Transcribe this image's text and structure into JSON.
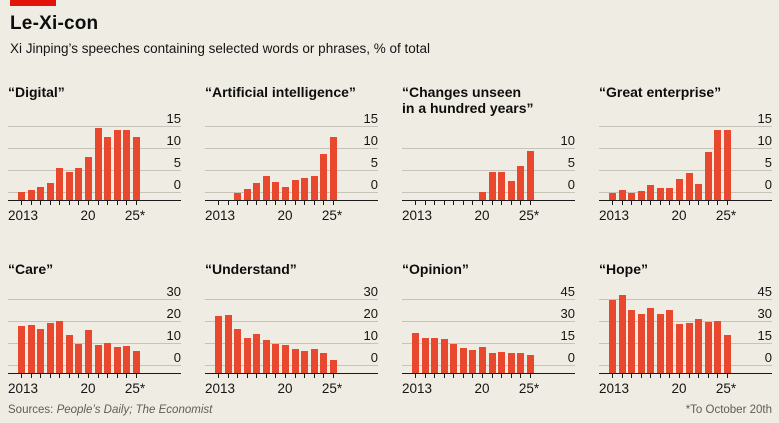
{
  "header": {
    "title": "Le-Xi-con",
    "subtitle": "Xi Jinping’s speeches containing selected words or phrases, % of total"
  },
  "footer": {
    "sources_prefix": "Sources: ",
    "sources": "People’s Daily; The Economist",
    "note": "*To October 20th"
  },
  "colors": {
    "background": "#EFEDE3",
    "bar": "#E8492E",
    "brand_red": "#E3120B",
    "gridline": "#C6C4BA",
    "axis": "#1A1A1A",
    "text": "#141414",
    "muted": "#5E5D57"
  },
  "x_axis": {
    "tick_labels": [
      "2013",
      "20",
      "25*"
    ]
  },
  "chart_data": [
    {
      "type": "bar",
      "title_lines": [
        "“Digital”"
      ],
      "categories": [
        "2013",
        "2014",
        "2015",
        "2016",
        "2017",
        "2018",
        "2019",
        "2020",
        "2021",
        "2022",
        "2023",
        "2024",
        "2025"
      ],
      "values": [
        0.5,
        1,
        1.7,
        2.4,
        6,
        5,
        6,
        8.5,
        15,
        13,
        14.5,
        14.5,
        13
      ],
      "yticks": [
        0,
        5,
        10,
        15
      ],
      "ylim": [
        0,
        15
      ]
    },
    {
      "type": "bar",
      "title_lines": [
        "“Artificial intelligence”"
      ],
      "categories": [
        "2013",
        "2014",
        "2015",
        "2016",
        "2017",
        "2018",
        "2019",
        "2020",
        "2021",
        "2022",
        "2023",
        "2024",
        "2025"
      ],
      "values": [
        0,
        0,
        0.2,
        1.2,
        2.5,
        4.2,
        2.7,
        1.7,
        3.2,
        3.6,
        4.2,
        9.2,
        13
      ],
      "yticks": [
        0,
        5,
        10,
        15
      ],
      "ylim": [
        0,
        15
      ]
    },
    {
      "type": "bar",
      "title_lines": [
        "“Changes unseen",
        "in a hundred years”"
      ],
      "categories": [
        "2013",
        "2014",
        "2015",
        "2016",
        "2017",
        "2018",
        "2019",
        "2020",
        "2021",
        "2022",
        "2023",
        "2024",
        "2025"
      ],
      "values": [
        0,
        0,
        0,
        0,
        0,
        0,
        0,
        0.5,
        5,
        5,
        3,
        6.3,
        9.7
      ],
      "yticks": [
        0,
        5,
        10
      ],
      "ylim": [
        0,
        10
      ]
    },
    {
      "type": "bar",
      "title_lines": [
        "“Great enterprise”"
      ],
      "categories": [
        "2013",
        "2014",
        "2015",
        "2016",
        "2017",
        "2018",
        "2019",
        "2020",
        "2021",
        "2022",
        "2023",
        "2024",
        "2025"
      ],
      "values": [
        0.3,
        1,
        0.3,
        0.6,
        2,
        1.3,
        1.4,
        3.4,
        4.8,
        2.3,
        9.5,
        14.5,
        14.5
      ],
      "yticks": [
        0,
        5,
        10,
        15
      ],
      "ylim": [
        0,
        15
      ]
    },
    {
      "type": "bar",
      "title_lines": [
        "“Care”"
      ],
      "categories": [
        "2013",
        "2014",
        "2015",
        "2016",
        "2017",
        "2018",
        "2019",
        "2020",
        "2021",
        "2022",
        "2023",
        "2024",
        "2025"
      ],
      "values": [
        18.5,
        19,
        17.5,
        20,
        21,
        14.5,
        10.5,
        17,
        10,
        11,
        9,
        9.5,
        7.5
      ],
      "yticks": [
        0,
        10,
        20,
        30
      ],
      "ylim": [
        0,
        30
      ]
    },
    {
      "type": "bar",
      "title_lines": [
        "“Understand”"
      ],
      "categories": [
        "2013",
        "2014",
        "2015",
        "2016",
        "2017",
        "2018",
        "2019",
        "2020",
        "2021",
        "2022",
        "2023",
        "2024",
        "2025"
      ],
      "values": [
        23,
        23.5,
        17.5,
        13,
        15,
        12.5,
        10.5,
        10,
        8,
        7.5,
        8,
        6.5,
        3
      ],
      "yticks": [
        0,
        10,
        20,
        30
      ],
      "ylim": [
        0,
        30
      ]
    },
    {
      "type": "bar",
      "title_lines": [
        "“Opinion”"
      ],
      "categories": [
        "2013",
        "2014",
        "2015",
        "2016",
        "2017",
        "2018",
        "2019",
        "2020",
        "2021",
        "2022",
        "2023",
        "2024",
        "2025"
      ],
      "values": [
        23.5,
        20,
        19.5,
        19,
        15.5,
        13,
        11.5,
        13.5,
        9.5,
        10.5,
        9.5,
        9.5,
        8
      ],
      "yticks": [
        0,
        15,
        30,
        45
      ],
      "ylim": [
        0,
        45
      ]
    },
    {
      "type": "bar",
      "title_lines": [
        "“Hope”"
      ],
      "categories": [
        "2013",
        "2014",
        "2015",
        "2016",
        "2017",
        "2018",
        "2019",
        "2020",
        "2021",
        "2022",
        "2023",
        "2024",
        "2025"
      ],
      "values": [
        46,
        49,
        39,
        36,
        40,
        36,
        39,
        29.5,
        30,
        33,
        31,
        31.5,
        21.5
      ],
      "yticks": [
        0,
        15,
        30,
        45
      ],
      "ylim": [
        0,
        45
      ]
    }
  ]
}
